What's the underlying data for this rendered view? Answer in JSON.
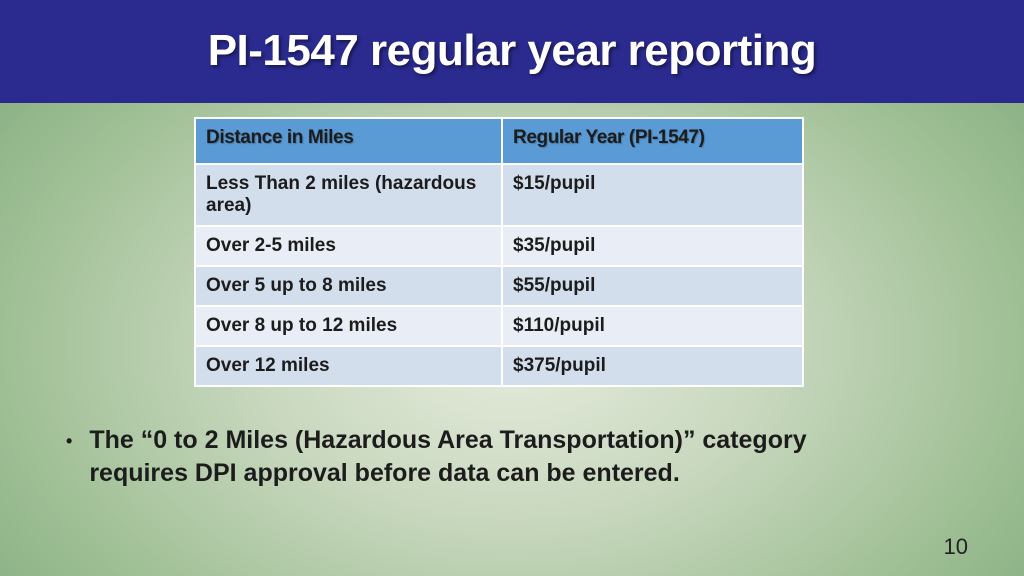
{
  "header": {
    "title": "PI-1547 regular year reporting"
  },
  "table": {
    "columns": [
      "Distance in Miles",
      "Regular Year (PI-1547)"
    ],
    "rows": [
      [
        "Less Than 2 miles (hazardous area)",
        "$15/pupil"
      ],
      [
        "Over 2-5 miles",
        "$35/pupil"
      ],
      [
        "Over 5 up to 8 miles",
        "$55/pupil"
      ],
      [
        "Over 8 up to 12 miles",
        "$110/pupil"
      ],
      [
        "Over 12 miles",
        "$375/pupil"
      ]
    ]
  },
  "bullet": {
    "marker": "•",
    "text": "The “0 to 2 Miles (Hazardous Area Transportation)” category requires DPI approval before data can be entered."
  },
  "page_number": "10",
  "colors": {
    "header_bg": "#2a2a8f",
    "table_header_bg": "#5b9bd5",
    "table_row_bg": "#d2deec",
    "table_row_alt_bg": "#e9eef6"
  }
}
